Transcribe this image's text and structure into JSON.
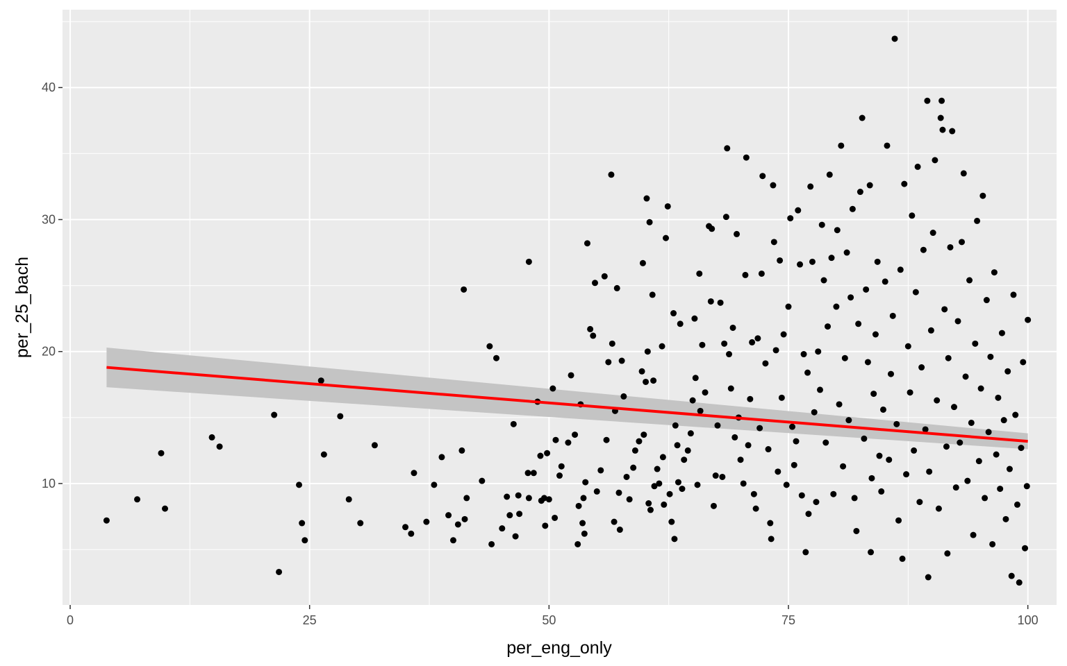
{
  "chart_data": {
    "type": "scatter",
    "xlabel": "per_eng_only",
    "ylabel": "per_25_bach",
    "xlim": [
      -0.8,
      103
    ],
    "ylim": [
      0.8,
      45.9
    ],
    "x_ticks": [
      0,
      25,
      50,
      75,
      100
    ],
    "y_ticks": [
      10,
      20,
      30,
      40
    ],
    "grid": true,
    "colors": {
      "panel": "#ebebeb",
      "grid": "#ffffff",
      "points": "#000000",
      "trend_line": "#ff0000",
      "confidence_band": "#c4c4c4"
    },
    "trend_line": {
      "x": [
        3.8,
        100
      ],
      "y": [
        18.8,
        13.2
      ],
      "band_lower": [
        17.3,
        12.6
      ],
      "band_upper": [
        20.3,
        13.8
      ]
    },
    "points": [
      [
        3.8,
        7.2
      ],
      [
        7.0,
        8.8
      ],
      [
        9.5,
        12.3
      ],
      [
        9.9,
        8.1
      ],
      [
        14.8,
        13.5
      ],
      [
        15.6,
        12.8
      ],
      [
        21.3,
        15.2
      ],
      [
        21.8,
        3.3
      ],
      [
        23.9,
        9.9
      ],
      [
        24.2,
        7.0
      ],
      [
        24.5,
        5.7
      ],
      [
        26.2,
        17.8
      ],
      [
        26.5,
        12.2
      ],
      [
        28.2,
        15.1
      ],
      [
        29.1,
        8.8
      ],
      [
        30.3,
        7.0
      ],
      [
        31.8,
        12.9
      ],
      [
        35.0,
        6.7
      ],
      [
        35.6,
        6.2
      ],
      [
        35.9,
        10.8
      ],
      [
        37.2,
        7.1
      ],
      [
        38.0,
        9.9
      ],
      [
        38.8,
        12.0
      ],
      [
        39.5,
        7.6
      ],
      [
        40.0,
        5.7
      ],
      [
        40.5,
        6.9
      ],
      [
        40.9,
        12.5
      ],
      [
        41.1,
        24.7
      ],
      [
        41.2,
        7.3
      ],
      [
        41.4,
        8.9
      ],
      [
        43.0,
        10.2
      ],
      [
        43.8,
        20.4
      ],
      [
        44.0,
        5.4
      ],
      [
        44.5,
        19.5
      ],
      [
        45.1,
        6.6
      ],
      [
        45.6,
        9.0
      ],
      [
        45.9,
        7.6
      ],
      [
        46.3,
        14.5
      ],
      [
        46.5,
        6.0
      ],
      [
        46.8,
        9.1
      ],
      [
        46.9,
        7.7
      ],
      [
        47.8,
        10.8
      ],
      [
        47.9,
        26.8
      ],
      [
        47.9,
        8.9
      ],
      [
        48.4,
        10.8
      ],
      [
        48.8,
        16.2
      ],
      [
        49.1,
        12.1
      ],
      [
        49.2,
        8.7
      ],
      [
        49.5,
        8.9
      ],
      [
        49.6,
        6.8
      ],
      [
        49.8,
        12.3
      ],
      [
        50.0,
        8.8
      ],
      [
        50.4,
        17.2
      ],
      [
        50.6,
        7.4
      ],
      [
        50.7,
        13.3
      ],
      [
        51.1,
        10.6
      ],
      [
        51.3,
        11.3
      ],
      [
        52.0,
        13.1
      ],
      [
        52.3,
        18.2
      ],
      [
        52.7,
        13.7
      ],
      [
        53.0,
        5.4
      ],
      [
        53.1,
        8.3
      ],
      [
        53.3,
        16.0
      ],
      [
        53.5,
        7.0
      ],
      [
        53.6,
        8.9
      ],
      [
        53.7,
        6.2
      ],
      [
        53.8,
        10.1
      ],
      [
        54.0,
        28.2
      ],
      [
        54.3,
        21.7
      ],
      [
        54.6,
        21.2
      ],
      [
        54.8,
        25.2
      ],
      [
        55.0,
        9.4
      ],
      [
        55.4,
        11.0
      ],
      [
        55.8,
        25.7
      ],
      [
        56.0,
        13.3
      ],
      [
        56.2,
        19.2
      ],
      [
        56.5,
        33.4
      ],
      [
        56.6,
        20.6
      ],
      [
        56.8,
        7.1
      ],
      [
        56.9,
        15.5
      ],
      [
        57.1,
        24.8
      ],
      [
        57.3,
        9.3
      ],
      [
        57.4,
        6.5
      ],
      [
        57.6,
        19.3
      ],
      [
        57.8,
        16.6
      ],
      [
        58.1,
        10.5
      ],
      [
        58.4,
        8.8
      ],
      [
        58.8,
        11.2
      ],
      [
        59.0,
        12.5
      ],
      [
        59.4,
        13.2
      ],
      [
        59.7,
        18.5
      ],
      [
        59.8,
        26.7
      ],
      [
        59.9,
        13.7
      ],
      [
        60.1,
        17.7
      ],
      [
        60.2,
        31.6
      ],
      [
        60.3,
        20.0
      ],
      [
        60.4,
        8.5
      ],
      [
        60.5,
        29.8
      ],
      [
        60.6,
        8.0
      ],
      [
        60.8,
        24.3
      ],
      [
        60.9,
        17.8
      ],
      [
        61.0,
        9.8
      ],
      [
        61.3,
        11.1
      ],
      [
        61.5,
        10.0
      ],
      [
        61.8,
        20.4
      ],
      [
        61.9,
        12.0
      ],
      [
        62.0,
        8.4
      ],
      [
        62.2,
        28.6
      ],
      [
        62.4,
        31.0
      ],
      [
        62.6,
        9.2
      ],
      [
        62.8,
        7.1
      ],
      [
        63.0,
        22.9
      ],
      [
        63.1,
        5.8
      ],
      [
        63.2,
        14.4
      ],
      [
        63.4,
        12.9
      ],
      [
        63.5,
        10.1
      ],
      [
        63.7,
        22.1
      ],
      [
        63.9,
        9.6
      ],
      [
        64.1,
        11.8
      ],
      [
        64.5,
        12.5
      ],
      [
        64.8,
        13.8
      ],
      [
        65.0,
        16.3
      ],
      [
        65.2,
        22.5
      ],
      [
        65.3,
        18.0
      ],
      [
        65.5,
        9.9
      ],
      [
        65.7,
        25.9
      ],
      [
        65.8,
        15.5
      ],
      [
        66.0,
        20.5
      ],
      [
        66.3,
        16.9
      ],
      [
        66.7,
        29.5
      ],
      [
        66.9,
        23.8
      ],
      [
        67.0,
        29.3
      ],
      [
        67.2,
        8.3
      ],
      [
        67.4,
        10.6
      ],
      [
        67.6,
        14.4
      ],
      [
        67.9,
        23.7
      ],
      [
        68.1,
        10.5
      ],
      [
        68.3,
        20.6
      ],
      [
        68.5,
        30.2
      ],
      [
        68.6,
        35.4
      ],
      [
        68.8,
        19.8
      ],
      [
        69.0,
        17.2
      ],
      [
        69.2,
        21.8
      ],
      [
        69.4,
        13.5
      ],
      [
        69.6,
        28.9
      ],
      [
        69.8,
        15.0
      ],
      [
        70.0,
        11.8
      ],
      [
        70.3,
        10.0
      ],
      [
        70.5,
        25.8
      ],
      [
        70.6,
        34.7
      ],
      [
        70.8,
        12.9
      ],
      [
        71.0,
        16.4
      ],
      [
        71.2,
        20.7
      ],
      [
        71.4,
        9.2
      ],
      [
        71.6,
        8.1
      ],
      [
        71.8,
        21.0
      ],
      [
        72.0,
        14.2
      ],
      [
        72.2,
        25.9
      ],
      [
        72.3,
        33.3
      ],
      [
        72.6,
        19.1
      ],
      [
        72.9,
        12.6
      ],
      [
        73.1,
        7.0
      ],
      [
        73.2,
        5.8
      ],
      [
        73.4,
        32.6
      ],
      [
        73.5,
        28.3
      ],
      [
        73.7,
        20.1
      ],
      [
        73.9,
        10.9
      ],
      [
        74.1,
        26.9
      ],
      [
        74.3,
        16.5
      ],
      [
        74.5,
        21.3
      ],
      [
        74.8,
        9.9
      ],
      [
        75.0,
        23.4
      ],
      [
        75.2,
        30.1
      ],
      [
        75.4,
        14.3
      ],
      [
        75.6,
        11.4
      ],
      [
        75.8,
        13.2
      ],
      [
        76.0,
        30.7
      ],
      [
        76.2,
        26.6
      ],
      [
        76.4,
        9.1
      ],
      [
        76.6,
        19.8
      ],
      [
        76.8,
        4.8
      ],
      [
        77.0,
        18.4
      ],
      [
        77.1,
        7.7
      ],
      [
        77.3,
        32.5
      ],
      [
        77.5,
        26.8
      ],
      [
        77.7,
        15.4
      ],
      [
        77.9,
        8.6
      ],
      [
        78.1,
        20.0
      ],
      [
        78.3,
        17.1
      ],
      [
        78.5,
        29.6
      ],
      [
        78.7,
        25.4
      ],
      [
        78.9,
        13.1
      ],
      [
        79.1,
        21.9
      ],
      [
        79.3,
        33.4
      ],
      [
        79.5,
        27.1
      ],
      [
        79.7,
        9.2
      ],
      [
        80.0,
        23.4
      ],
      [
        80.1,
        29.2
      ],
      [
        80.3,
        16.0
      ],
      [
        80.5,
        35.6
      ],
      [
        80.7,
        11.3
      ],
      [
        80.9,
        19.5
      ],
      [
        81.1,
        27.5
      ],
      [
        81.3,
        14.8
      ],
      [
        81.5,
        24.1
      ],
      [
        81.7,
        30.8
      ],
      [
        81.9,
        8.9
      ],
      [
        82.1,
        6.4
      ],
      [
        82.3,
        22.1
      ],
      [
        82.5,
        32.1
      ],
      [
        82.7,
        37.7
      ],
      [
        82.9,
        13.4
      ],
      [
        83.1,
        24.7
      ],
      [
        83.3,
        19.2
      ],
      [
        83.5,
        32.6
      ],
      [
        83.6,
        4.8
      ],
      [
        83.7,
        10.4
      ],
      [
        83.9,
        16.8
      ],
      [
        84.1,
        21.3
      ],
      [
        84.3,
        26.8
      ],
      [
        84.5,
        12.1
      ],
      [
        84.7,
        9.4
      ],
      [
        84.9,
        15.6
      ],
      [
        85.1,
        25.3
      ],
      [
        85.3,
        35.6
      ],
      [
        85.5,
        11.8
      ],
      [
        85.7,
        18.3
      ],
      [
        85.9,
        22.7
      ],
      [
        86.1,
        43.7
      ],
      [
        86.3,
        14.5
      ],
      [
        86.5,
        7.2
      ],
      [
        86.7,
        26.2
      ],
      [
        86.9,
        4.3
      ],
      [
        87.1,
        32.7
      ],
      [
        87.3,
        10.7
      ],
      [
        87.5,
        20.4
      ],
      [
        87.7,
        16.9
      ],
      [
        87.9,
        30.3
      ],
      [
        88.1,
        12.5
      ],
      [
        88.3,
        24.5
      ],
      [
        88.5,
        34.0
      ],
      [
        88.7,
        8.6
      ],
      [
        88.9,
        18.8
      ],
      [
        89.1,
        27.7
      ],
      [
        89.3,
        14.1
      ],
      [
        89.5,
        39.0
      ],
      [
        89.6,
        2.9
      ],
      [
        89.7,
        10.9
      ],
      [
        89.9,
        21.6
      ],
      [
        90.1,
        29.0
      ],
      [
        90.3,
        34.5
      ],
      [
        90.5,
        16.3
      ],
      [
        90.7,
        8.1
      ],
      [
        90.9,
        37.7
      ],
      [
        91.0,
        39.0
      ],
      [
        91.1,
        36.8
      ],
      [
        91.3,
        23.2
      ],
      [
        91.5,
        12.8
      ],
      [
        91.6,
        4.7
      ],
      [
        91.7,
        19.5
      ],
      [
        91.9,
        27.9
      ],
      [
        92.1,
        36.7
      ],
      [
        92.3,
        15.8
      ],
      [
        92.5,
        9.7
      ],
      [
        92.7,
        22.3
      ],
      [
        92.9,
        13.1
      ],
      [
        93.1,
        28.3
      ],
      [
        93.3,
        33.5
      ],
      [
        93.5,
        18.1
      ],
      [
        93.7,
        10.2
      ],
      [
        93.9,
        25.4
      ],
      [
        94.1,
        14.6
      ],
      [
        94.3,
        6.1
      ],
      [
        94.5,
        20.6
      ],
      [
        94.7,
        29.9
      ],
      [
        94.9,
        11.7
      ],
      [
        95.1,
        17.2
      ],
      [
        95.3,
        31.8
      ],
      [
        95.5,
        8.9
      ],
      [
        95.7,
        23.9
      ],
      [
        95.9,
        13.9
      ],
      [
        96.1,
        19.6
      ],
      [
        96.3,
        5.4
      ],
      [
        96.5,
        26.0
      ],
      [
        96.7,
        12.2
      ],
      [
        96.9,
        16.5
      ],
      [
        97.1,
        9.6
      ],
      [
        97.3,
        21.4
      ],
      [
        97.5,
        14.8
      ],
      [
        97.7,
        7.3
      ],
      [
        97.9,
        18.5
      ],
      [
        98.1,
        11.1
      ],
      [
        98.3,
        3.0
      ],
      [
        98.5,
        24.3
      ],
      [
        98.7,
        15.2
      ],
      [
        98.9,
        8.4
      ],
      [
        99.1,
        2.5
      ],
      [
        99.3,
        12.7
      ],
      [
        99.5,
        19.2
      ],
      [
        99.7,
        5.1
      ],
      [
        99.9,
        9.8
      ],
      [
        100.0,
        22.4
      ]
    ]
  }
}
